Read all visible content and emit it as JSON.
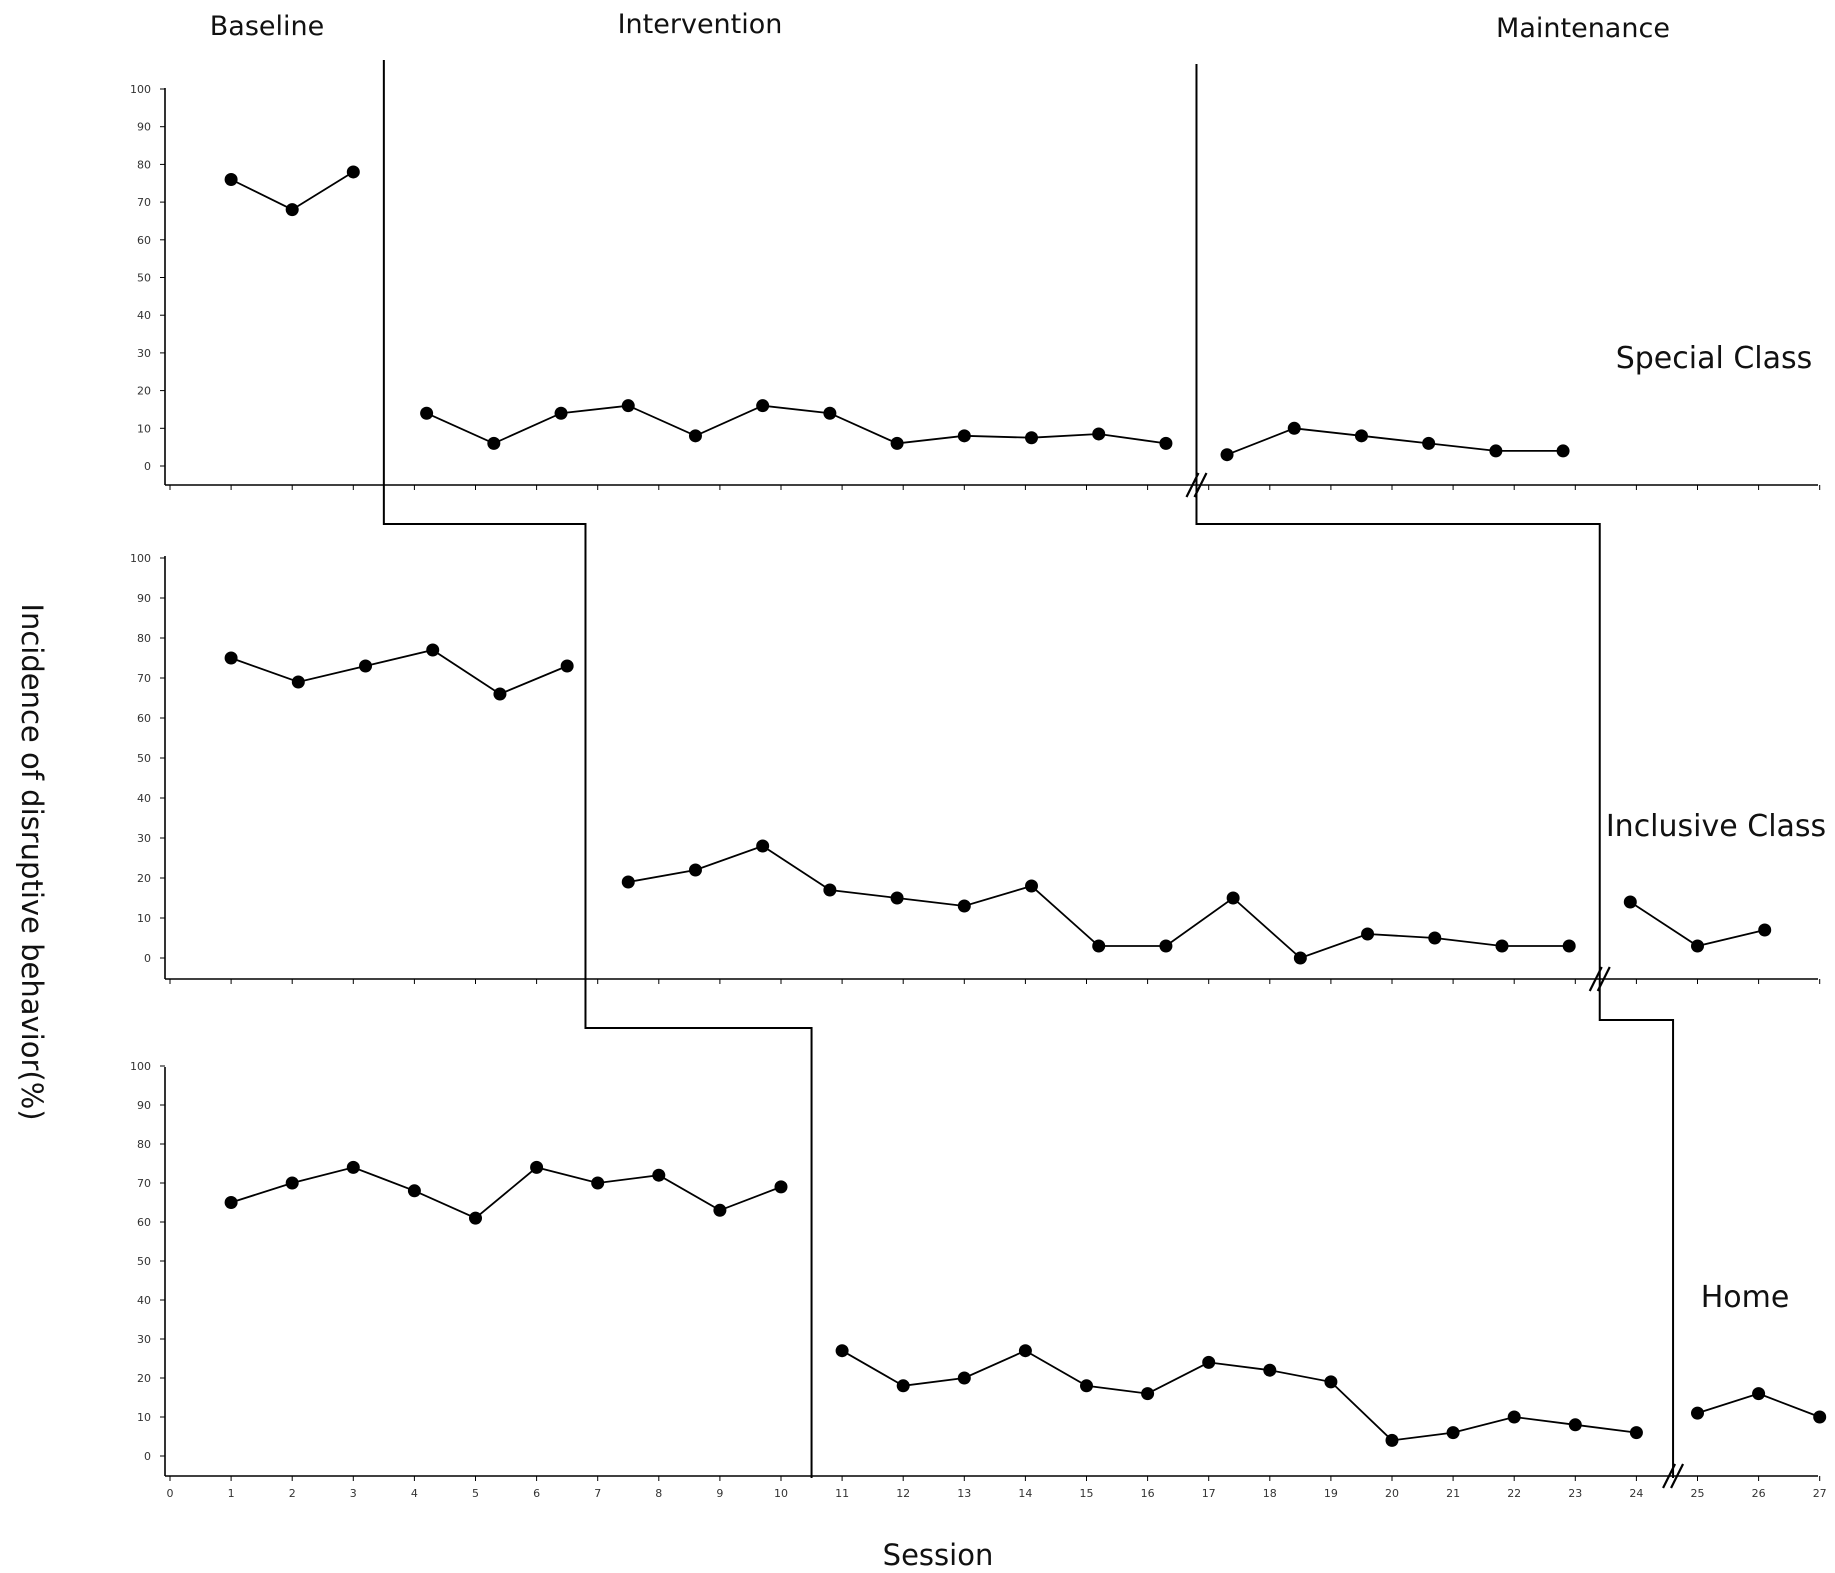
{
  "chart_data": {
    "type": "line",
    "phase_labels": [
      "Baseline",
      "Intervention",
      "Maintenance"
    ],
    "xlabel": "Session",
    "ylabel": "Incidence of disruptive behavior(%)",
    "y_ticks": [
      0,
      10,
      20,
      30,
      40,
      50,
      60,
      70,
      80,
      90,
      100
    ],
    "x_ticks": [
      0,
      1,
      2,
      3,
      4,
      5,
      6,
      7,
      8,
      9,
      10,
      11,
      12,
      13,
      14,
      15,
      16,
      17,
      18,
      19,
      20,
      21,
      22,
      23,
      24,
      25,
      26,
      27
    ],
    "ylim": [
      0,
      100
    ],
    "xlim": [
      0,
      27
    ],
    "panels": [
      {
        "setting": "Special Class",
        "phases": [
          {
            "name": "Baseline",
            "x": [
              1,
              2,
              3
            ],
            "y": [
              76,
              68,
              78
            ]
          },
          {
            "name": "Intervention",
            "x": [
              4.2,
              5.3,
              6.4,
              7.5,
              8.6,
              9.7,
              10.8,
              11.9,
              13,
              14.1,
              15.2,
              16.3
            ],
            "y": [
              14,
              6,
              14,
              16,
              8,
              16,
              14,
              6,
              8,
              7.5,
              8.5,
              6
            ]
          },
          {
            "name": "Maintenance",
            "x": [
              17.3,
              18.4,
              19.5,
              20.6,
              21.7,
              22.8
            ],
            "y": [
              3,
              10,
              8,
              6,
              4,
              4
            ]
          }
        ]
      },
      {
        "setting": "Inclusive Class",
        "phases": [
          {
            "name": "Baseline",
            "x": [
              1,
              2.1,
              3.2,
              4.3,
              5.4,
              6.5
            ],
            "y": [
              75,
              69,
              73,
              77,
              66,
              73
            ]
          },
          {
            "name": "Intervention",
            "x": [
              7.5,
              8.6,
              9.7,
              10.8,
              11.9,
              13,
              14.1,
              15.2,
              16.3,
              17.4,
              18.5,
              19.6,
              20.7,
              21.8,
              22.9
            ],
            "y": [
              19,
              22,
              28,
              17,
              15,
              13,
              18,
              3,
              3,
              15,
              0,
              6,
              5,
              3,
              3
            ]
          },
          {
            "name": "Maintenance",
            "x": [
              23.9,
              25,
              26.1
            ],
            "y": [
              14,
              3,
              7
            ]
          }
        ]
      },
      {
        "setting": "Home",
        "phases": [
          {
            "name": "Baseline",
            "x": [
              1,
              2,
              3,
              4,
              5,
              6,
              7,
              8,
              9,
              10
            ],
            "y": [
              65,
              70,
              74,
              68,
              61,
              74,
              70,
              72,
              63,
              69
            ]
          },
          {
            "name": "Intervention",
            "x": [
              11,
              12,
              13,
              14,
              15,
              16,
              17,
              18,
              19,
              20,
              21,
              22,
              23,
              24
            ],
            "y": [
              27,
              18,
              20,
              27,
              18,
              16,
              24,
              22,
              19,
              4,
              6,
              10,
              8,
              6
            ]
          },
          {
            "name": "Maintenance",
            "x": [
              25,
              26,
              27
            ],
            "y": [
              11,
              16,
              10
            ]
          }
        ]
      }
    ],
    "phase_change_after": [
      3.5,
      6.8,
      10.5
    ],
    "maintenance_start": [
      16.8,
      23.4,
      24.6
    ]
  }
}
